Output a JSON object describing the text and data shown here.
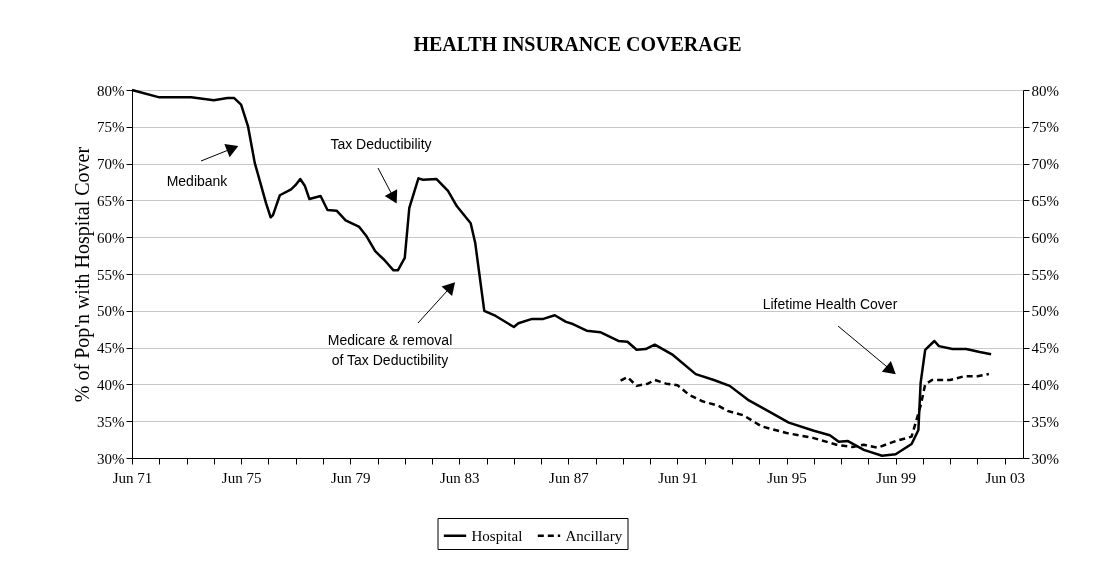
{
  "chart_data": {
    "type": "line",
    "title": "HEALTH INSURANCE COVERAGE",
    "ylabel": "% of Pop'n with Hospital Cover",
    "xlim": [
      "1971-06",
      "2004-02"
    ],
    "xticks": [
      {
        "value": "1971-06",
        "label": "Jun 71"
      },
      {
        "value": "1972-06",
        "label": null
      },
      {
        "value": "1973-06",
        "label": null
      },
      {
        "value": "1974-06",
        "label": null
      },
      {
        "value": "1975-06",
        "label": "Jun 75"
      },
      {
        "value": "1976-06",
        "label": null
      },
      {
        "value": "1977-06",
        "label": null
      },
      {
        "value": "1978-06",
        "label": null
      },
      {
        "value": "1979-06",
        "label": "Jun 79"
      },
      {
        "value": "1980-06",
        "label": null
      },
      {
        "value": "1981-06",
        "label": null
      },
      {
        "value": "1982-06",
        "label": null
      },
      {
        "value": "1983-06",
        "label": "Jun 83"
      },
      {
        "value": "1984-06",
        "label": null
      },
      {
        "value": "1985-06",
        "label": null
      },
      {
        "value": "1986-06",
        "label": null
      },
      {
        "value": "1987-06",
        "label": "Jun 87"
      },
      {
        "value": "1988-06",
        "label": null
      },
      {
        "value": "1989-06",
        "label": null
      },
      {
        "value": "1990-06",
        "label": null
      },
      {
        "value": "1991-06",
        "label": "Jun 91"
      },
      {
        "value": "1992-06",
        "label": null
      },
      {
        "value": "1993-06",
        "label": null
      },
      {
        "value": "1994-06",
        "label": null
      },
      {
        "value": "1995-06",
        "label": "Jun 95"
      },
      {
        "value": "1996-06",
        "label": null
      },
      {
        "value": "1997-06",
        "label": null
      },
      {
        "value": "1998-06",
        "label": null
      },
      {
        "value": "1999-06",
        "label": "Jun 99"
      },
      {
        "value": "2000-06",
        "label": null
      },
      {
        "value": "2001-06",
        "label": null
      },
      {
        "value": "2002-06",
        "label": null
      },
      {
        "value": "2003-06",
        "label": "Jun 03"
      }
    ],
    "ylim": [
      30,
      80
    ],
    "yticks": [
      {
        "value": 30,
        "label": "30%"
      },
      {
        "value": 35,
        "label": "35%"
      },
      {
        "value": 40,
        "label": "40%"
      },
      {
        "value": 45,
        "label": "45%"
      },
      {
        "value": 50,
        "label": "50%"
      },
      {
        "value": 55,
        "label": "55%"
      },
      {
        "value": 60,
        "label": "60%"
      },
      {
        "value": 65,
        "label": "65%"
      },
      {
        "value": 70,
        "label": "70%"
      },
      {
        "value": 75,
        "label": "75%"
      },
      {
        "value": 80,
        "label": "80%"
      }
    ],
    "y2lim": [
      30,
      80
    ],
    "y2ticks": [
      {
        "value": 30,
        "label": "30%"
      },
      {
        "value": 35,
        "label": "35%"
      },
      {
        "value": 40,
        "label": "40%"
      },
      {
        "value": 45,
        "label": "45%"
      },
      {
        "value": 50,
        "label": "50%"
      },
      {
        "value": 55,
        "label": "55%"
      },
      {
        "value": 60,
        "label": "60%"
      },
      {
        "value": 65,
        "label": "65%"
      },
      {
        "value": 70,
        "label": "70%"
      },
      {
        "value": 75,
        "label": "75%"
      },
      {
        "value": 80,
        "label": "80%"
      }
    ],
    "grid": "y",
    "legend": "bottom",
    "marker": "none",
    "series": [
      {
        "name": "Hospital",
        "color": "#000000",
        "line_style": "solid",
        "x": [
          "1971-06",
          "1972-06",
          "1973-08",
          "1974-06",
          "1974-12",
          "1975-03",
          "1975-06",
          "1975-09",
          "1975-12",
          "1976-05",
          "1976-07",
          "1976-08",
          "1976-11",
          "1977-04",
          "1977-06",
          "1977-08",
          "1977-10",
          "1977-12",
          "1978-05",
          "1978-08",
          "1978-12",
          "1979-04",
          "1979-10",
          "1980-01",
          "1980-05",
          "1980-09",
          "1981-01",
          "1981-03",
          "1981-06",
          "1981-08",
          "1981-11",
          "1981-12",
          "1982-02",
          "1982-08",
          "1983-01",
          "1983-05",
          "1983-11",
          "1984-01",
          "1984-05",
          "1984-10",
          "1985-06",
          "1985-08",
          "1986-02",
          "1986-07",
          "1986-12",
          "1987-05",
          "1987-08",
          "1988-02",
          "1988-08",
          "1989-04",
          "1989-08",
          "1989-12",
          "1990-04",
          "1990-08",
          "1991-04",
          "1992-02",
          "1992-10",
          "1993-05",
          "1994-01",
          "1994-08",
          "1995-07",
          "1996-06",
          "1997-01",
          "1997-05",
          "1997-09",
          "1998-04",
          "1998-12",
          "1999-06",
          "2000-01",
          "2000-04",
          "2000-05",
          "2000-07",
          "2000-11",
          "2001-01",
          "2001-07",
          "2002-01",
          "2002-07",
          "2002-12"
        ],
        "values": [
          80.0,
          79.0,
          79.0,
          78.6,
          78.9,
          78.9,
          78.0,
          75.1,
          70.1,
          64.6,
          62.7,
          63.0,
          65.7,
          66.5,
          67.1,
          67.9,
          67.0,
          65.2,
          65.6,
          63.7,
          63.6,
          62.3,
          61.4,
          60.2,
          58.1,
          56.9,
          55.5,
          55.5,
          57.2,
          64.0,
          67.0,
          68.0,
          67.8,
          67.9,
          66.3,
          64.2,
          61.9,
          59.2,
          50.0,
          49.3,
          47.8,
          48.3,
          48.9,
          48.9,
          49.4,
          48.5,
          48.2,
          47.3,
          47.1,
          45.9,
          45.8,
          44.7,
          44.8,
          45.4,
          44.0,
          41.4,
          40.6,
          39.8,
          37.9,
          36.7,
          34.8,
          33.7,
          33.1,
          32.2,
          32.3,
          31.1,
          30.3,
          30.5,
          31.9,
          33.8,
          40.2,
          44.7,
          45.9,
          45.2,
          44.8,
          44.8,
          44.4,
          44.1
        ]
      },
      {
        "name": "Ancillary",
        "color": "#000000",
        "line_style": "dashed",
        "x": [
          "1989-05",
          "1989-08",
          "1989-12",
          "1990-05",
          "1990-08",
          "1991-01",
          "1991-06",
          "1991-11",
          "1992-05",
          "1992-12",
          "1993-04",
          "1993-11",
          "1994-07",
          "1995-06",
          "1996-06",
          "1997-04",
          "1997-11",
          "1998-04",
          "1998-10",
          "1999-06",
          "2000-01",
          "2000-05",
          "2000-07",
          "2000-10",
          "2001-06",
          "2001-12",
          "2002-06",
          "2002-11"
        ],
        "values": [
          40.5,
          41.0,
          39.8,
          40.1,
          40.6,
          40.1,
          39.9,
          38.6,
          37.7,
          37.1,
          36.4,
          35.8,
          34.3,
          33.4,
          32.7,
          31.8,
          31.5,
          31.8,
          31.4,
          32.3,
          32.9,
          37.1,
          40.0,
          40.6,
          40.6,
          41.1,
          41.1,
          41.4
        ]
      }
    ],
    "annotations": [
      "Medibank",
      "Tax Deductibility",
      "Medicare & removal\nof Tax Deductibility",
      "Lifetime Health Cover"
    ]
  }
}
